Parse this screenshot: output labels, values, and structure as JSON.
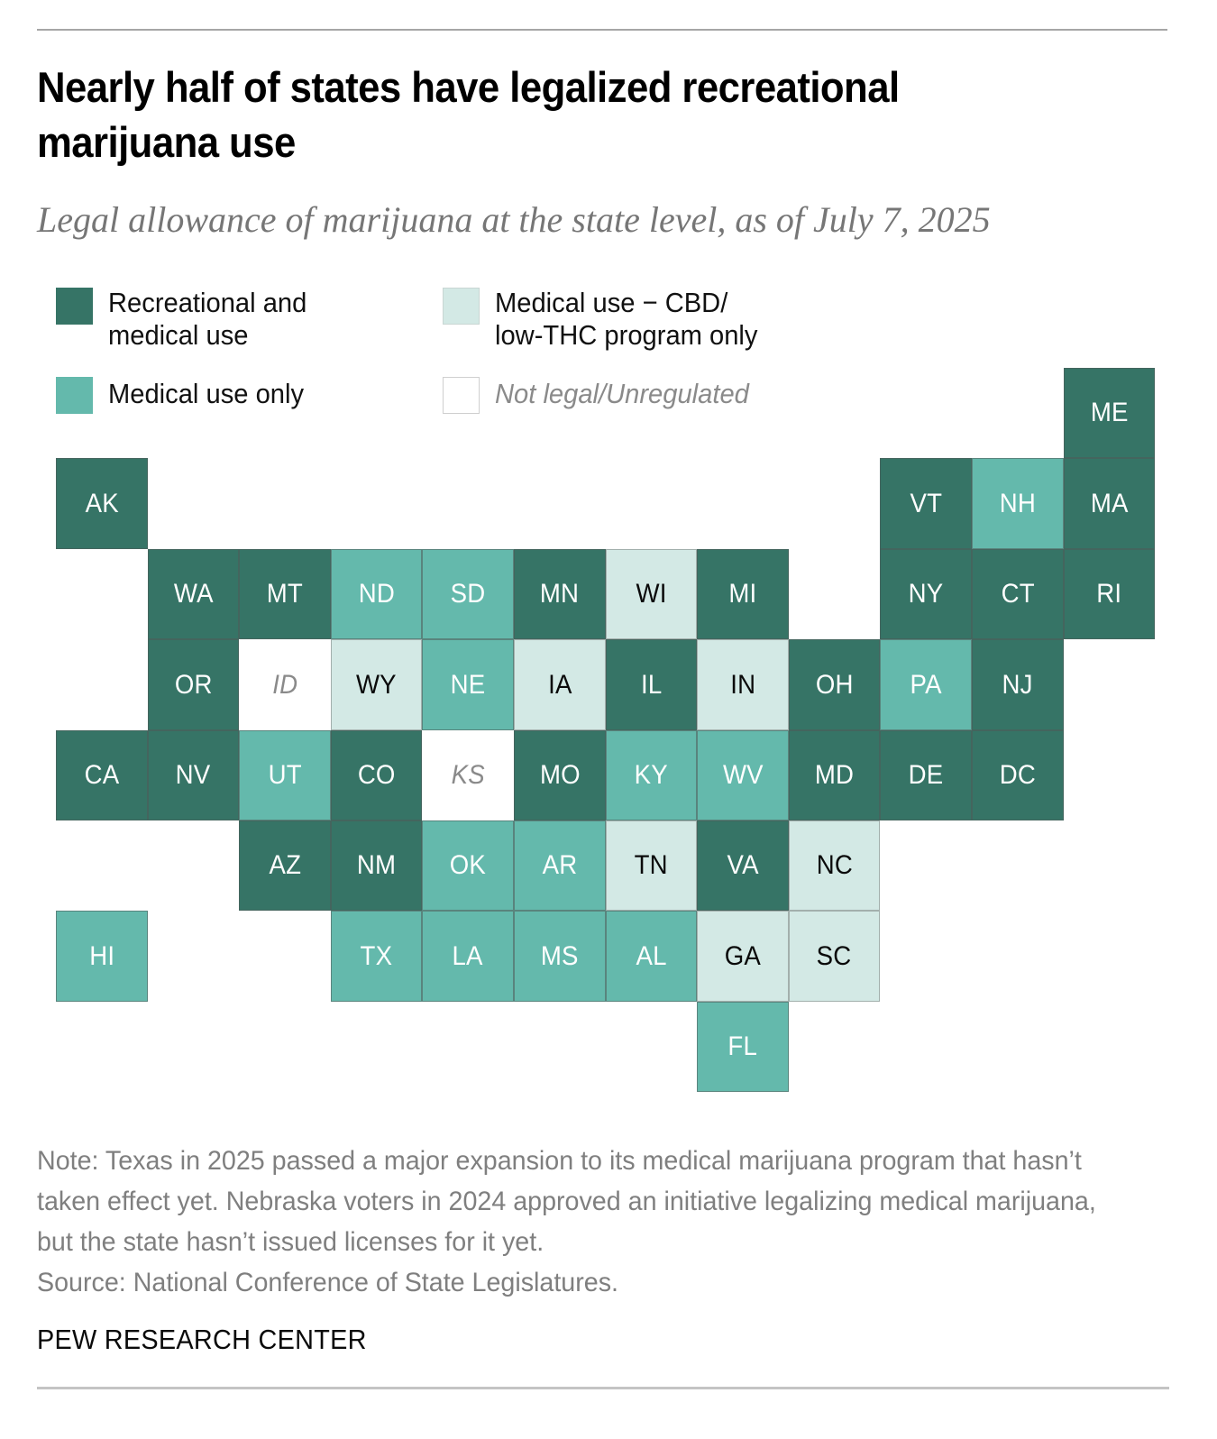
{
  "header": {
    "title": "Nearly half of states have legalized recreational marijuana use",
    "subtitle": "Legal allowance of marijuana at the state level, as of July 7, 2025"
  },
  "legend": [
    {
      "key": "rec",
      "label_line1": "Recreational and",
      "label_line2": "medical use",
      "color": "#367466"
    },
    {
      "key": "cbd",
      "label_line1": "Medical use − CBD/",
      "label_line2": "low-THC program only",
      "color": "#d3e9e5"
    },
    {
      "key": "med",
      "label_line1": "Medical use only",
      "label_line2": "",
      "color": "#64b9ac"
    },
    {
      "key": "none",
      "label_line1": "Not legal/Unregulated",
      "label_line2": "",
      "color": "#ffffff"
    }
  ],
  "colors": {
    "rec": "#367466",
    "med": "#64b9ac",
    "cbd": "#d3e9e5",
    "none": "#ffffff"
  },
  "chart_data": {
    "type": "tile-map",
    "title": "Nearly half of states have legalized recreational marijuana use",
    "subtitle": "Legal allowance of marijuana at the state level, as of July 7, 2025",
    "categories": {
      "rec": "Recreational and medical use",
      "med": "Medical use only",
      "cbd": "Medical use − CBD/low-THC program only",
      "none": "Not legal/Unregulated"
    },
    "grid": "row/col indices of the cartogram",
    "states": [
      {
        "abbr": "ME",
        "row": 0,
        "col": 11,
        "status": "rec"
      },
      {
        "abbr": "AK",
        "row": 1,
        "col": 0,
        "status": "rec"
      },
      {
        "abbr": "VT",
        "row": 1,
        "col": 9,
        "status": "rec"
      },
      {
        "abbr": "NH",
        "row": 1,
        "col": 10,
        "status": "med"
      },
      {
        "abbr": "MA",
        "row": 1,
        "col": 11,
        "status": "rec"
      },
      {
        "abbr": "WA",
        "row": 2,
        "col": 1,
        "status": "rec"
      },
      {
        "abbr": "MT",
        "row": 2,
        "col": 2,
        "status": "rec"
      },
      {
        "abbr": "ND",
        "row": 2,
        "col": 3,
        "status": "med"
      },
      {
        "abbr": "SD",
        "row": 2,
        "col": 4,
        "status": "med"
      },
      {
        "abbr": "MN",
        "row": 2,
        "col": 5,
        "status": "rec"
      },
      {
        "abbr": "WI",
        "row": 2,
        "col": 6,
        "status": "cbd"
      },
      {
        "abbr": "MI",
        "row": 2,
        "col": 7,
        "status": "rec"
      },
      {
        "abbr": "NY",
        "row": 2,
        "col": 9,
        "status": "rec"
      },
      {
        "abbr": "CT",
        "row": 2,
        "col": 10,
        "status": "rec"
      },
      {
        "abbr": "RI",
        "row": 2,
        "col": 11,
        "status": "rec"
      },
      {
        "abbr": "OR",
        "row": 3,
        "col": 1,
        "status": "rec"
      },
      {
        "abbr": "ID",
        "row": 3,
        "col": 2,
        "status": "none"
      },
      {
        "abbr": "WY",
        "row": 3,
        "col": 3,
        "status": "cbd"
      },
      {
        "abbr": "NE",
        "row": 3,
        "col": 4,
        "status": "med"
      },
      {
        "abbr": "IA",
        "row": 3,
        "col": 5,
        "status": "cbd"
      },
      {
        "abbr": "IL",
        "row": 3,
        "col": 6,
        "status": "rec"
      },
      {
        "abbr": "IN",
        "row": 3,
        "col": 7,
        "status": "cbd"
      },
      {
        "abbr": "OH",
        "row": 3,
        "col": 8,
        "status": "rec"
      },
      {
        "abbr": "PA",
        "row": 3,
        "col": 9,
        "status": "med"
      },
      {
        "abbr": "NJ",
        "row": 3,
        "col": 10,
        "status": "rec"
      },
      {
        "abbr": "CA",
        "row": 4,
        "col": 0,
        "status": "rec"
      },
      {
        "abbr": "NV",
        "row": 4,
        "col": 1,
        "status": "rec"
      },
      {
        "abbr": "UT",
        "row": 4,
        "col": 2,
        "status": "med"
      },
      {
        "abbr": "CO",
        "row": 4,
        "col": 3,
        "status": "rec"
      },
      {
        "abbr": "KS",
        "row": 4,
        "col": 4,
        "status": "none"
      },
      {
        "abbr": "MO",
        "row": 4,
        "col": 5,
        "status": "rec"
      },
      {
        "abbr": "KY",
        "row": 4,
        "col": 6,
        "status": "med"
      },
      {
        "abbr": "WV",
        "row": 4,
        "col": 7,
        "status": "med"
      },
      {
        "abbr": "MD",
        "row": 4,
        "col": 8,
        "status": "rec"
      },
      {
        "abbr": "DE",
        "row": 4,
        "col": 9,
        "status": "rec"
      },
      {
        "abbr": "DC",
        "row": 4,
        "col": 10,
        "status": "rec"
      },
      {
        "abbr": "AZ",
        "row": 5,
        "col": 2,
        "status": "rec"
      },
      {
        "abbr": "NM",
        "row": 5,
        "col": 3,
        "status": "rec"
      },
      {
        "abbr": "OK",
        "row": 5,
        "col": 4,
        "status": "med"
      },
      {
        "abbr": "AR",
        "row": 5,
        "col": 5,
        "status": "med"
      },
      {
        "abbr": "TN",
        "row": 5,
        "col": 6,
        "status": "cbd"
      },
      {
        "abbr": "VA",
        "row": 5,
        "col": 7,
        "status": "rec"
      },
      {
        "abbr": "NC",
        "row": 5,
        "col": 8,
        "status": "cbd"
      },
      {
        "abbr": "HI",
        "row": 6,
        "col": 0,
        "status": "med"
      },
      {
        "abbr": "TX",
        "row": 6,
        "col": 3,
        "status": "med"
      },
      {
        "abbr": "LA",
        "row": 6,
        "col": 4,
        "status": "med"
      },
      {
        "abbr": "MS",
        "row": 6,
        "col": 5,
        "status": "med"
      },
      {
        "abbr": "AL",
        "row": 6,
        "col": 6,
        "status": "med"
      },
      {
        "abbr": "GA",
        "row": 6,
        "col": 7,
        "status": "cbd"
      },
      {
        "abbr": "SC",
        "row": 6,
        "col": 8,
        "status": "cbd"
      },
      {
        "abbr": "FL",
        "row": 7,
        "col": 7,
        "status": "med"
      }
    ]
  },
  "footer": {
    "note": "Note: Texas in 2025 passed a major expansion to its medical marijuana program that hasn’t taken effect yet. Nebraska voters in 2024 approved an initiative legalizing medical marijuana, but the state hasn’t issued licenses for it yet.",
    "source": "Source: National Conference of State Legislatures.",
    "brand": "PEW RESEARCH CENTER"
  }
}
